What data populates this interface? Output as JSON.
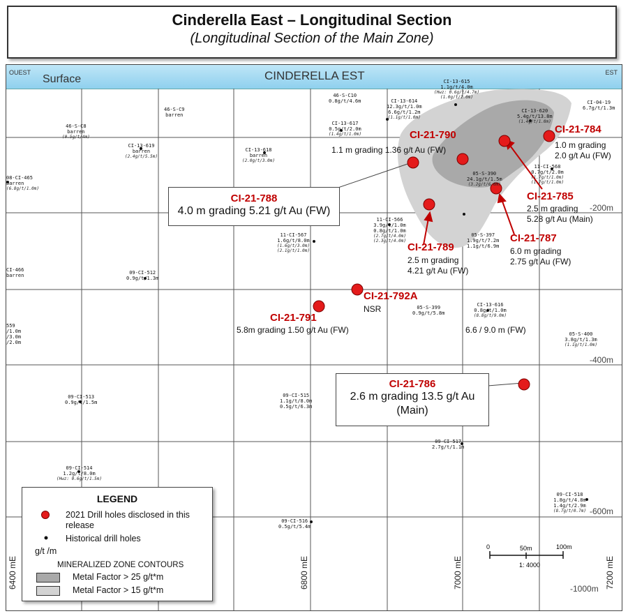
{
  "title": {
    "main": "Cinderella East – Longitudinal Section",
    "sub": "(Longitudinal Section of the Main Zone)"
  },
  "banner": {
    "ouest": "OUEST",
    "surface": "Surface",
    "section_name": "CINDERELLA EST",
    "est": "EST"
  },
  "depth_labels": [
    "-200m",
    "-400m",
    "-600m",
    "-1000m"
  ],
  "easting_labels": [
    "6400 mE",
    "6800 mE",
    "7000 mE",
    "7200 mE"
  ],
  "new_holes": [
    {
      "id": "CI-21-790",
      "grade": "1.1 m grading 1.36 g/t Au (FW)"
    },
    {
      "id": "CI-21-784",
      "grade_1": "1.0 m grading",
      "grade_2": "2.0 g/t Au (FW)"
    },
    {
      "id": "CI-21-788",
      "grade": "4.0 m grading 5.21 g/t Au (FW)"
    },
    {
      "id": "CI-21-785",
      "grade_1": "2.5 m grading",
      "grade_2": "5.28 g/t Au (Main)"
    },
    {
      "id": "CI-21-787",
      "grade_1": "6.0 m grading",
      "grade_2": "2.75 g/t Au (FW)"
    },
    {
      "id": "CI-21-789",
      "grade_1": "2.5 m grading",
      "grade_2": "4.21 g/t Au (FW)"
    },
    {
      "id": "CI-21-792A",
      "grade": "NSR"
    },
    {
      "id": "CI-21-791",
      "grade": "5.8m grading 1.50 g/t Au (FW)"
    },
    {
      "id": "CI-21-786",
      "grade_1": "2.6 m grading 13.5 g/t Au",
      "grade_2": "(Main)"
    }
  ],
  "extra_grade": "6.6 / 9.0 m (FW)",
  "historical": [
    {
      "id": "46-S-C8",
      "l1": "barren",
      "l2": "(0.5g/t/4m)"
    },
    {
      "id": "46-S-C9",
      "l1": "barren",
      "l2": ""
    },
    {
      "id": "46-S-C10",
      "l1": "0.8g/t/4.6m",
      "l2": ""
    },
    {
      "id": "CI-13-615",
      "l1": "1.1g/t/4.0m",
      "l2": "(Hwz: 0.6g/t/4.7m)",
      "l3": "(1.0g/t/1.0m)"
    },
    {
      "id": "CI-13-614",
      "l1": "12.3g/t/1.0m",
      "l2": "6.6g/t/1.2m",
      "l3": "(1.1g/t/1.0m)"
    },
    {
      "id": "CI-13-617",
      "l1": "0.5g/t/2.0m",
      "l2": "(1.4g/t/1.0m)"
    },
    {
      "id": "CI-13-620",
      "l1": "5.4g/t/13.8m",
      "l2": "(1.4g/t/1.0m)"
    },
    {
      "id": "CI-04-19",
      "l1": "6.7g/t/1.3m",
      "l2": ""
    },
    {
      "id": "CI-13-619",
      "l1": "barren",
      "l2": "(2.4g/t/5.5m)"
    },
    {
      "id": "CI-13-618",
      "l1": "barren",
      "l2": "(2.0g/t/3.0m)"
    },
    {
      "id": "08-CI-465",
      "l1": "barren",
      "l2": "(6.8g/t/1.0m)"
    },
    {
      "id": "05-S-390",
      "l1": "24.1g/t/1.5m",
      "l2": "(3.2g/t/6.0m)"
    },
    {
      "id": "11-CI-568",
      "l1": "0.7g/t/2.0m",
      "l2": "(1.7g/t/1.0m)",
      "l3": "(1.7g/t/1.0m)"
    },
    {
      "id": "11-CI-566",
      "l1": "3.9g/t/1.0m",
      "l2": "0.8g/t/1.0m",
      "l3": "(2.7g/t/4.0m)",
      "l4": "(2.3g/t/4.0m)"
    },
    {
      "id": "05-S-397",
      "l1": "1.9g/t/7.2m",
      "l2": "1.1g/t/6.9m"
    },
    {
      "id": "11-CI-567",
      "l1": "1.6g/t/8.0m",
      "l2": "(1.6g/t/3.0m)",
      "l3": "(2.1g/t/1.0m)"
    },
    {
      "id": "09-CI-512",
      "l1": "0.9g/t/1.3m",
      "l2": ""
    },
    {
      "id": "CI-466",
      "l1": "barren",
      "l2": ""
    },
    {
      "id": "05-S-399",
      "l1": "0.9g/t/5.8m",
      "l2": ""
    },
    {
      "id": "CI-13-616",
      "l1": "0.8g/t/1.0m",
      "l2": "(8.8g/t/9.0m)"
    },
    {
      "id": "05-S-400",
      "l1": "3.8g/t/1.3m",
      "l2": "(1.1g/t/1.0m)"
    },
    {
      "id": "09-CI-513",
      "l1": "0.9g/t/1.5m",
      "l2": ""
    },
    {
      "id": "09-CI-515",
      "l1": "1.1g/t/8.0m",
      "l2": "0.5g/t/6.3m"
    },
    {
      "id": "09-CI-517",
      "l1": "2.7g/t/1.1m",
      "l2": ""
    },
    {
      "id": "09-CI-514",
      "l1": "1.2g/t/8.0m",
      "l2": "(Hwz: 0.6g/t/1.5m)"
    },
    {
      "id": "09-CI-516",
      "l1": "0.5g/t/5.4m",
      "l2": ""
    },
    {
      "id": "09-CI-518",
      "l1": "1.8g/t/4.8m",
      "l2": "1.4g/t/2.9m",
      "l3": "(8.7g/t/0.7m)"
    }
  ],
  "left_edge_text": [
    "559",
    "/1.0m",
    "/3.0m",
    "/2.0m"
  ],
  "scale": {
    "t0": "0",
    "t1": "50m",
    "t2": "100m",
    "ratio": "1: 4000"
  },
  "legend": {
    "title": "LEGEND",
    "new": "2021 Drill holes disclosed in this release",
    "historical": "Historical drill holes",
    "unit": "g/t /m",
    "contours_title": "MINERALIZED ZONE CONTOURS",
    "mf25": "Metal Factor > 25 g/t*m",
    "mf15": "Metal Factor > 15 g/t*m"
  },
  "colors": {
    "new_hole": "#e41b1b",
    "dark_zone": "#a9a9a9",
    "light_zone": "#d3d3d3",
    "label_red": "#c00000"
  }
}
